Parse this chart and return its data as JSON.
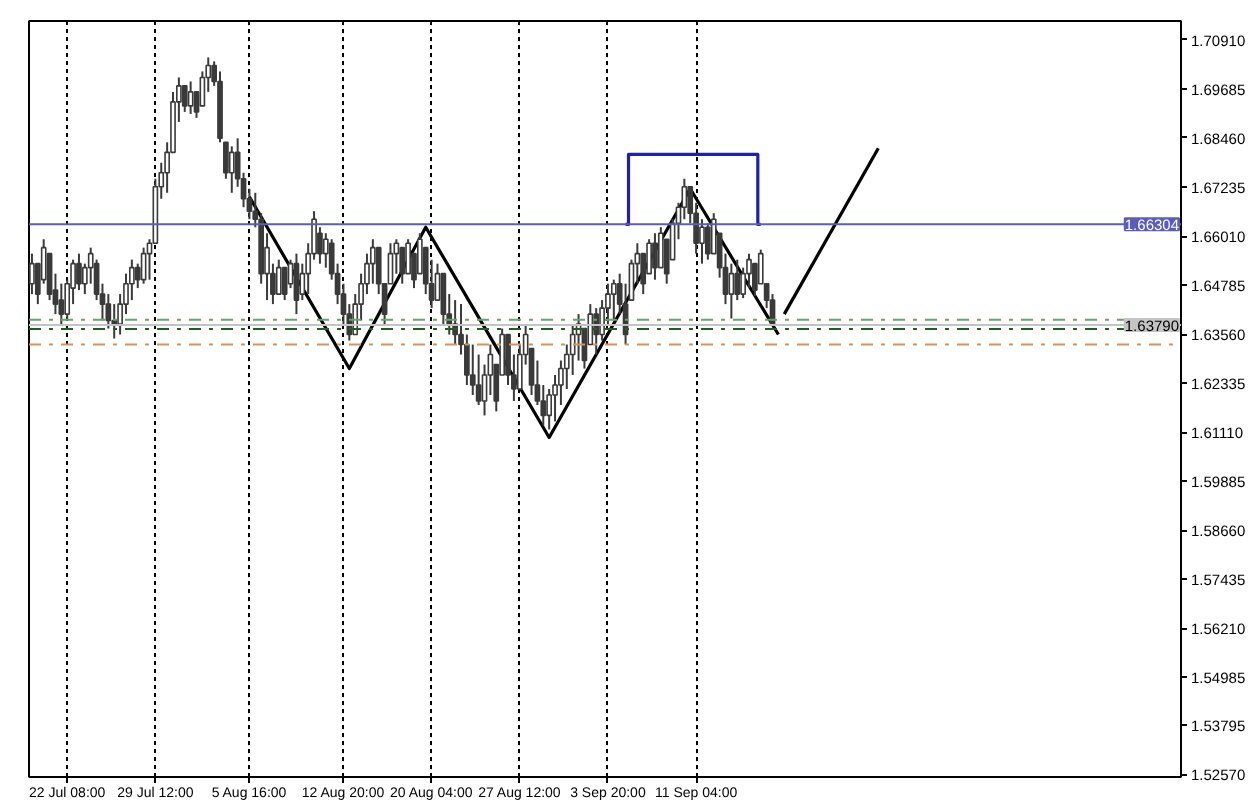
{
  "chart_data": {
    "type": "candlestick",
    "color": "#3a3a3a",
    "categories": [
      null,
      null,
      null,
      null,
      null,
      null,
      "22 Jul 08:00",
      null,
      null,
      null,
      null,
      null,
      null,
      null,
      null,
      null,
      null,
      null,
      null,
      null,
      null,
      "29 Jul 12:00",
      null,
      null,
      null,
      null,
      null,
      null,
      null,
      null,
      null,
      null,
      null,
      null,
      null,
      null,
      null,
      "5 Aug 16:00",
      null,
      null,
      null,
      null,
      null,
      null,
      null,
      null,
      null,
      null,
      null,
      null,
      null,
      null,
      null,
      "12 Aug 20:00",
      null,
      null,
      null,
      null,
      null,
      null,
      null,
      null,
      null,
      null,
      null,
      null,
      null,
      null,
      "20 Aug 04:00",
      null,
      null,
      null,
      null,
      null,
      null,
      null,
      null,
      null,
      null,
      null,
      null,
      null,
      null,
      "27 Aug 12:00",
      null,
      null,
      null,
      null,
      null,
      null,
      null,
      null,
      null,
      null,
      null,
      null,
      null,
      null,
      "3 Sep 20:00",
      null,
      null,
      null,
      null,
      null,
      null,
      null,
      null,
      null,
      null,
      null,
      null,
      null,
      null,
      "11 Sep 04:00",
      null,
      null,
      null,
      null,
      null,
      null,
      null,
      null,
      null,
      null,
      null,
      null,
      null,
      null,
      null,
      null,
      null,
      null,
      null,
      null,
      null,
      null,
      null,
      null,
      null,
      null,
      null,
      null,
      null,
      null,
      null,
      null,
      null,
      null,
      null,
      null,
      null,
      null,
      null,
      null,
      null,
      null,
      null,
      null,
      null,
      null,
      null,
      null,
      null,
      null,
      null,
      null,
      null,
      null,
      null,
      null,
      null,
      null,
      null,
      null,
      null,
      null,
      null,
      null,
      null,
      null,
      null,
      null,
      null,
      null,
      null,
      null,
      null,
      null,
      null,
      null,
      null,
      null,
      null,
      null,
      null,
      null
    ],
    "ohlc": [
      [
        1.6482,
        1.6557,
        1.6456,
        1.6532
      ],
      [
        1.6532,
        1.6532,
        1.6431,
        1.6456
      ],
      [
        1.6492,
        1.6593,
        1.6482,
        1.6572
      ],
      [
        1.6557,
        1.6557,
        1.6441,
        1.6456
      ],
      [
        1.6466,
        1.6507,
        1.6406,
        1.6431
      ],
      [
        1.6441,
        1.6482,
        1.6381,
        1.6406
      ],
      [
        1.6406,
        1.6492,
        1.639,
        1.6482
      ],
      [
        1.6471,
        1.6542,
        1.6431,
        1.6532
      ],
      [
        1.6532,
        1.6557,
        1.6466,
        1.6482
      ],
      [
        1.6482,
        1.6532,
        1.6456,
        1.6522
      ],
      [
        1.6522,
        1.6572,
        1.6482,
        1.6557
      ],
      [
        1.6532,
        1.6542,
        1.6441,
        1.6456
      ],
      [
        1.6456,
        1.6482,
        1.639,
        1.6431
      ],
      [
        1.6431,
        1.6456,
        1.637,
        1.639
      ],
      [
        1.639,
        1.6431,
        1.6345,
        1.6381
      ],
      [
        1.6381,
        1.6456,
        1.6355,
        1.6431
      ],
      [
        1.6431,
        1.6507,
        1.6406,
        1.6482
      ],
      [
        1.6482,
        1.6542,
        1.6441,
        1.6522
      ],
      [
        1.6522,
        1.6532,
        1.6471,
        1.6492
      ],
      [
        1.6492,
        1.6572,
        1.6482,
        1.6557
      ],
      [
        1.6557,
        1.6593,
        1.6492,
        1.6583
      ],
      [
        1.6583,
        1.6744,
        1.6583,
        1.6724
      ],
      [
        1.6724,
        1.6784,
        1.6694,
        1.6759
      ],
      [
        1.6759,
        1.6835,
        1.6709,
        1.681
      ],
      [
        1.681,
        1.6961,
        1.681,
        1.6936
      ],
      [
        1.6936,
        1.6997,
        1.6886,
        1.6976
      ],
      [
        1.6976,
        1.6976,
        1.6911,
        1.6926
      ],
      [
        1.6926,
        1.6987,
        1.6906,
        1.6961
      ],
      [
        1.6961,
        1.6961,
        1.6896,
        1.6911
      ],
      [
        1.6926,
        1.7012,
        1.6926,
        1.6997
      ],
      [
        1.6997,
        1.7047,
        1.6961,
        1.7027
      ],
      [
        1.7027,
        1.7037,
        1.6976,
        1.6987
      ],
      [
        1.6987,
        1.7012,
        1.6835,
        1.6845
      ],
      [
        1.6835,
        1.6835,
        1.6744,
        1.6759
      ],
      [
        1.6759,
        1.6825,
        1.6709,
        1.681
      ],
      [
        1.681,
        1.6845,
        1.6724,
        1.6744
      ],
      [
        1.6744,
        1.6759,
        1.6673,
        1.6694
      ],
      [
        1.6694,
        1.6719,
        1.6643,
        1.6663
      ],
      [
        1.6663,
        1.6709,
        1.6623,
        1.6643
      ],
      [
        1.6643,
        1.6658,
        1.6482,
        1.6507
      ],
      [
        1.6507,
        1.6608,
        1.6441,
        1.6572
      ],
      [
        1.6507,
        1.6532,
        1.6431,
        1.6456
      ],
      [
        1.6456,
        1.6542,
        1.6456,
        1.6522
      ],
      [
        1.6522,
        1.6522,
        1.6441,
        1.6456
      ],
      [
        1.6482,
        1.6542,
        1.6471,
        1.6532
      ],
      [
        1.6532,
        1.6557,
        1.6406,
        1.6441
      ],
      [
        1.6456,
        1.6532,
        1.6441,
        1.6507
      ],
      [
        1.6507,
        1.6583,
        1.6456,
        1.6557
      ],
      [
        1.6557,
        1.6663,
        1.6542,
        1.6643
      ],
      [
        1.6608,
        1.6623,
        1.6532,
        1.6557
      ],
      [
        1.6557,
        1.6608,
        1.6522,
        1.6593
      ],
      [
        1.6583,
        1.6593,
        1.6492,
        1.6507
      ],
      [
        1.6507,
        1.6532,
        1.6431,
        1.6456
      ],
      [
        1.6456,
        1.6482,
        1.6381,
        1.6406
      ],
      [
        1.6406,
        1.6431,
        1.634,
        1.6355
      ],
      [
        1.6355,
        1.6456,
        1.6355,
        1.6431
      ],
      [
        1.6431,
        1.6507,
        1.639,
        1.6482
      ],
      [
        1.6482,
        1.6557,
        1.6456,
        1.6532
      ],
      [
        1.6532,
        1.6593,
        1.6482,
        1.6572
      ],
      [
        1.6572,
        1.6572,
        1.6456,
        1.6482
      ],
      [
        1.6482,
        1.6482,
        1.6381,
        1.6406
      ],
      [
        1.6482,
        1.6583,
        1.6482,
        1.6557
      ],
      [
        1.6557,
        1.6593,
        1.6507,
        1.6583
      ],
      [
        1.6572,
        1.6572,
        1.6482,
        1.6507
      ],
      [
        1.6507,
        1.6593,
        1.6507,
        1.6583
      ],
      [
        1.6557,
        1.6557,
        1.6471,
        1.6492
      ],
      [
        1.6507,
        1.6608,
        1.6507,
        1.6593
      ],
      [
        1.6572,
        1.6572,
        1.6456,
        1.6482
      ],
      [
        1.6482,
        1.6542,
        1.6421,
        1.6441
      ],
      [
        1.6441,
        1.6532,
        1.6441,
        1.6507
      ],
      [
        1.6507,
        1.6507,
        1.6381,
        1.6406
      ],
      [
        1.6406,
        1.6456,
        1.6355,
        1.6381
      ],
      [
        1.6381,
        1.6441,
        1.633,
        1.6355
      ],
      [
        1.6355,
        1.6431,
        1.6305,
        1.633
      ],
      [
        1.633,
        1.6355,
        1.6229,
        1.6254
      ],
      [
        1.6254,
        1.633,
        1.6204,
        1.6229
      ],
      [
        1.6229,
        1.6305,
        1.6179,
        1.6189
      ],
      [
        1.6189,
        1.628,
        1.6153,
        1.6254
      ],
      [
        1.6254,
        1.633,
        1.6204,
        1.6305
      ],
      [
        1.628,
        1.628,
        1.6163,
        1.6189
      ],
      [
        1.6254,
        1.637,
        1.6254,
        1.6355
      ],
      [
        1.6355,
        1.6355,
        1.6229,
        1.6254
      ],
      [
        1.6254,
        1.6305,
        1.6189,
        1.6219
      ],
      [
        1.6219,
        1.633,
        1.6219,
        1.6305
      ],
      [
        1.6305,
        1.6381,
        1.628,
        1.6355
      ],
      [
        1.632,
        1.632,
        1.6204,
        1.6229
      ],
      [
        1.6229,
        1.629,
        1.6179,
        1.6189
      ],
      [
        1.6189,
        1.6229,
        1.6128,
        1.6153
      ],
      [
        1.6153,
        1.6219,
        1.6118,
        1.6204
      ],
      [
        1.6204,
        1.6254,
        1.6138,
        1.6229
      ],
      [
        1.6229,
        1.629,
        1.6179,
        1.627
      ],
      [
        1.627,
        1.633,
        1.6219,
        1.6305
      ],
      [
        1.6305,
        1.6381,
        1.6254,
        1.6355
      ],
      [
        1.6355,
        1.6406,
        1.629,
        1.6381
      ],
      [
        1.637,
        1.637,
        1.627,
        1.629
      ],
      [
        1.633,
        1.6431,
        1.633,
        1.6406
      ],
      [
        1.6406,
        1.6421,
        1.6305,
        1.6355
      ],
      [
        1.6355,
        1.6441,
        1.634,
        1.6421
      ],
      [
        1.6421,
        1.6482,
        1.6381,
        1.6456
      ],
      [
        1.6456,
        1.6492,
        1.639,
        1.6482
      ],
      [
        1.6482,
        1.6507,
        1.6406,
        1.6431
      ],
      [
        1.6431,
        1.6482,
        1.633,
        1.6355
      ],
      [
        1.6441,
        1.6542,
        1.6441,
        1.6532
      ],
      [
        1.6532,
        1.6583,
        1.6482,
        1.6557
      ],
      [
        1.6557,
        1.6557,
        1.6456,
        1.6482
      ],
      [
        1.6507,
        1.6593,
        1.6507,
        1.6583
      ],
      [
        1.6583,
        1.6608,
        1.6492,
        1.6522
      ],
      [
        1.6522,
        1.6623,
        1.6522,
        1.6608
      ],
      [
        1.6593,
        1.6593,
        1.6482,
        1.6507
      ],
      [
        1.6542,
        1.6643,
        1.6542,
        1.6633
      ],
      [
        1.6633,
        1.6684,
        1.6593,
        1.6673
      ],
      [
        1.6673,
        1.6744,
        1.6643,
        1.6724
      ],
      [
        1.6724,
        1.6724,
        1.6633,
        1.6658
      ],
      [
        1.6658,
        1.6684,
        1.6557,
        1.6583
      ],
      [
        1.6583,
        1.6643,
        1.6532,
        1.6623
      ],
      [
        1.6623,
        1.6633,
        1.6542,
        1.6557
      ],
      [
        1.6557,
        1.6658,
        1.6557,
        1.6643
      ],
      [
        1.6608,
        1.6608,
        1.6497,
        1.6522
      ],
      [
        1.6522,
        1.6557,
        1.6431,
        1.6456
      ],
      [
        1.6456,
        1.6532,
        1.6395,
        1.6507
      ],
      [
        1.6507,
        1.6542,
        1.6441,
        1.6456
      ],
      [
        1.6456,
        1.6522,
        1.6446,
        1.6507
      ],
      [
        1.6507,
        1.6557,
        1.6471,
        1.6542
      ],
      [
        1.6532,
        1.6532,
        1.6451,
        1.6466
      ],
      [
        1.6482,
        1.6567,
        1.6482,
        1.6557
      ],
      [
        1.6482,
        1.6482,
        1.6421,
        1.6441
      ],
      [
        1.6441,
        1.6456,
        1.6379,
        1.6379
      ],
      null,
      null,
      null,
      null,
      null,
      null,
      null,
      null,
      null,
      null,
      null,
      null,
      null,
      null,
      null,
      null,
      null,
      null,
      null,
      null,
      null,
      null,
      null,
      null,
      null,
      null,
      null,
      null,
      null,
      null,
      null,
      null,
      null,
      null,
      null,
      null,
      null,
      null,
      null,
      null,
      null,
      null,
      null,
      null,
      null,
      null,
      null,
      null,
      null,
      null,
      null,
      null,
      null,
      null,
      null,
      null,
      null,
      null,
      null,
      null,
      null,
      null,
      null,
      null,
      null,
      null,
      null,
      null,
      null
    ],
    "series": [
      {
        "type": "line",
        "color": "#000000",
        "values": [
          null,
          null,
          null,
          null,
          null,
          null,
          null,
          null,
          null,
          null,
          null,
          null,
          null,
          null,
          null,
          null,
          null,
          null,
          null,
          null,
          null,
          null,
          null,
          null,
          null,
          null,
          null,
          null,
          null,
          null,
          null,
          null,
          null,
          null,
          null,
          null,
          null,
          1.6699,
          null,
          null,
          null,
          null,
          null,
          null,
          null,
          null,
          null,
          null,
          null,
          null,
          null,
          null,
          null,
          null,
          1.627,
          null,
          null,
          null,
          null,
          null,
          null,
          null,
          null,
          null,
          null,
          null,
          null,
          1.6623,
          null,
          null,
          null,
          null,
          null,
          null,
          null,
          null,
          null,
          null,
          null,
          null,
          null,
          null,
          null,
          null,
          null,
          null,
          null,
          null,
          1.6098,
          null,
          null,
          null,
          null,
          null,
          null,
          null,
          null,
          null,
          null,
          null,
          null,
          null,
          null,
          null,
          null,
          null,
          null,
          null,
          null,
          null,
          null,
          null,
          1.6719,
          null,
          null,
          null,
          null,
          null,
          null,
          null,
          null,
          null,
          null,
          null,
          null,
          null,
          null,
          1.6355,
          null,
          null,
          null,
          null,
          null,
          null,
          null,
          null,
          null,
          null,
          null,
          null,
          null,
          null,
          null,
          null,
          null,
          null,
          null,
          null,
          null,
          null,
          null,
          null,
          null,
          null,
          null,
          null,
          null,
          null,
          null,
          null,
          null,
          null,
          null,
          null,
          null,
          null,
          null,
          null,
          null,
          null,
          null,
          null,
          null,
          null,
          null,
          null,
          null,
          null,
          null,
          null,
          null,
          null,
          null,
          null,
          null,
          null,
          null,
          null,
          null,
          null,
          null,
          null,
          null,
          null,
          null,
          null
        ]
      },
      {
        "type": "line",
        "color": "#000000",
        "values": [
          null,
          null,
          null,
          null,
          null,
          null,
          null,
          null,
          null,
          null,
          null,
          null,
          null,
          null,
          null,
          null,
          null,
          null,
          null,
          null,
          null,
          null,
          null,
          null,
          null,
          null,
          null,
          null,
          null,
          null,
          null,
          null,
          null,
          null,
          null,
          null,
          null,
          null,
          null,
          null,
          null,
          null,
          null,
          null,
          null,
          null,
          null,
          null,
          null,
          null,
          null,
          null,
          null,
          null,
          null,
          null,
          null,
          null,
          null,
          null,
          null,
          null,
          null,
          null,
          null,
          null,
          null,
          null,
          null,
          null,
          null,
          null,
          null,
          null,
          null,
          null,
          null,
          null,
          null,
          null,
          null,
          null,
          null,
          null,
          null,
          null,
          null,
          null,
          null,
          null,
          null,
          null,
          null,
          null,
          null,
          null,
          null,
          null,
          null,
          null,
          null,
          null,
          null,
          null,
          null,
          null,
          null,
          null,
          null,
          null,
          null,
          null,
          null,
          null,
          null,
          null,
          null,
          null,
          null,
          null,
          null,
          null,
          null,
          null,
          null,
          null,
          null,
          null,
          1.6406,
          null,
          null,
          null,
          null,
          null,
          null,
          null,
          null,
          null,
          null,
          null,
          null,
          null,
          null,
          null,
          1.682,
          null,
          null,
          null,
          null,
          null,
          null,
          null,
          null,
          null,
          null,
          null,
          null,
          null,
          null,
          null,
          null,
          null,
          null,
          null,
          null,
          null,
          null,
          null,
          null,
          null,
          null,
          null,
          null,
          null,
          null,
          null,
          null,
          null,
          null,
          null,
          null,
          null,
          null,
          null,
          null,
          null,
          null,
          null,
          null,
          null,
          null,
          null,
          null,
          null,
          null,
          null
        ]
      },
      {
        "type": "step",
        "color": "#2020a8",
        "values": [
          null,
          null,
          null,
          null,
          null,
          null,
          null,
          null,
          null,
          null,
          null,
          null,
          null,
          null,
          null,
          null,
          null,
          null,
          null,
          null,
          null,
          null,
          null,
          null,
          null,
          null,
          null,
          null,
          null,
          null,
          null,
          null,
          null,
          null,
          null,
          null,
          null,
          null,
          null,
          null,
          null,
          null,
          null,
          null,
          null,
          null,
          null,
          null,
          null,
          null,
          null,
          null,
          null,
          null,
          null,
          null,
          null,
          null,
          null,
          null,
          null,
          null,
          null,
          null,
          null,
          null,
          null,
          null,
          null,
          null,
          null,
          null,
          null,
          null,
          null,
          null,
          null,
          null,
          null,
          null,
          null,
          null,
          null,
          null,
          null,
          null,
          null,
          null,
          null,
          null,
          null,
          null,
          null,
          null,
          null,
          null,
          null,
          null,
          null,
          null,
          null,
          1.663,
          1.6805,
          1.6805,
          1.6805,
          1.6805,
          1.6805,
          1.6805,
          1.6805,
          1.6805,
          1.6805,
          1.6805,
          1.6805,
          1.6805,
          1.6805,
          1.6805,
          1.6805,
          1.6805,
          1.6805,
          1.6805,
          1.6805,
          1.6805,
          1.6805,
          1.6805,
          1.663,
          null,
          null,
          null,
          null,
          null,
          null,
          null,
          null,
          null,
          null,
          null,
          null,
          null,
          null,
          null,
          null,
          null,
          null,
          null,
          null,
          null,
          null,
          null,
          null,
          null,
          null,
          null,
          null,
          null,
          null,
          null,
          null,
          null,
          null,
          null,
          null,
          null,
          null,
          null,
          null,
          null,
          null,
          null,
          null,
          null,
          null,
          null,
          null,
          null,
          null,
          null,
          null,
          null,
          null,
          null,
          null,
          null,
          null,
          null,
          null,
          null,
          null,
          null,
          null,
          null,
          null,
          null,
          null,
          null,
          null,
          null
        ]
      }
    ],
    "ylim": [
      1.525,
      1.7138
    ],
    "yticks": [
      {
        "value": 1.7091,
        "label": "1.70910"
      },
      1.69685,
      {
        "value": 1.6846,
        "label": "1.68460"
      },
      1.67235,
      {
        "value": 1.6601,
        "label": "1.66010"
      },
      1.64785,
      {
        "value": 1.6356,
        "label": "1.63560"
      },
      1.62335,
      {
        "value": 1.6111,
        "label": "1.61110"
      },
      1.59885,
      {
        "value": 1.5866,
        "label": "1.58660"
      },
      1.57435,
      {
        "value": 1.5621,
        "label": "1.56210"
      },
      1.54985,
      1.53795,
      {
        "value": 1.5257,
        "label": "1.52570"
      }
    ],
    "grid": "x",
    "ref_lines": [
      {
        "axis": "y",
        "value": 1.66304,
        "label": "1.66304",
        "color": "#5c5cc0",
        "line_style": "solid"
      },
      {
        "axis": "y",
        "value": 1.6392,
        "color": "#6f9f6f",
        "line_style": "dashdot"
      },
      {
        "axis": "y",
        "value": 1.6379,
        "label": "1.63790",
        "color": "#c4c4c4",
        "line_style": "solid"
      },
      {
        "axis": "y",
        "value": 1.6369,
        "color": "#1f5f1f",
        "line_style": "dashdot"
      },
      {
        "axis": "y",
        "value": 1.633,
        "color": "#d9915a",
        "line_style": "dashdot"
      }
    ]
  }
}
